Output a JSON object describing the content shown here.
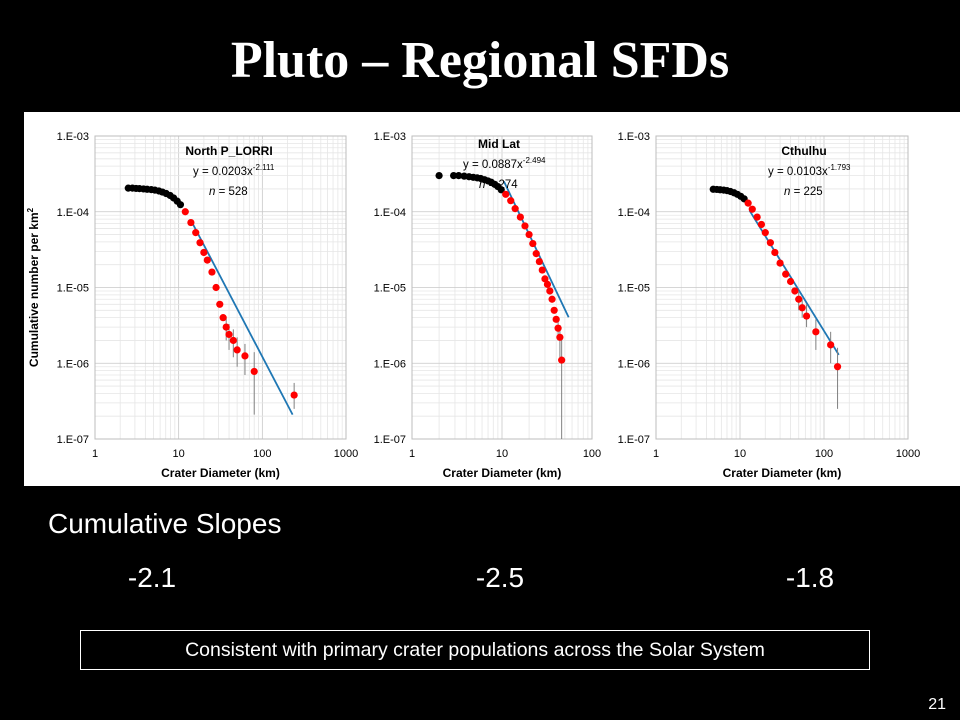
{
  "slide": {
    "title": "Pluto – Regional SFDs",
    "slopes_heading": "Cumulative Slopes",
    "slopes": [
      "-2.1",
      "-2.5",
      "-1.8"
    ],
    "conclusion": "Consistent with primary crater populations across the Solar System",
    "slide_number": "21"
  },
  "colors": {
    "background": "#000000",
    "data_point": "#ff0000",
    "small_crater_point": "#000000",
    "fit_line": "#1f77b4",
    "error_bar": "#808080"
  },
  "chart_data": [
    {
      "type": "scatter",
      "title": "North P_LORRI",
      "equation": "y = 0.0203x",
      "exponent": "-2.111",
      "n_label": "n",
      "n_value": "= 528",
      "xlabel": "Crater Diameter (km)",
      "ylabel": "Cumulative number per km",
      "ylabel_superscript": "2",
      "xscale": "log",
      "yscale": "log",
      "xlim": [
        1,
        1000
      ],
      "ylim": [
        1e-07,
        0.001
      ],
      "xticks": [
        "1",
        "10",
        "100",
        "1000"
      ],
      "yticks": [
        "1.E-07",
        "1.E-06",
        "1.E-05",
        "1.E-04",
        "1.E-03"
      ],
      "grid": true,
      "fit": {
        "coefficient": 0.0203,
        "exponent": -2.111,
        "x_range": [
          14,
          230
        ]
      },
      "points_small": {
        "x": [
          2.5,
          2.8,
          3.1,
          3.4,
          3.8,
          4.2,
          4.7,
          5.2,
          5.8,
          6.4,
          7.1,
          7.9,
          8.7,
          9.6,
          10.5
        ],
        "y": [
          0.000205,
          0.000205,
          0.000203,
          0.000202,
          0.0002,
          0.000198,
          0.000196,
          0.000193,
          0.000188,
          0.000182,
          0.000174,
          0.000164,
          0.000152,
          0.000138,
          0.000124
        ]
      },
      "points": {
        "x": [
          12,
          14,
          16,
          18,
          20,
          22,
          25,
          28,
          31,
          34,
          37,
          40,
          45,
          50,
          62,
          80,
          240
        ],
        "y": [
          0.0001,
          7.2e-05,
          5.3e-05,
          3.9e-05,
          2.9e-05,
          2.3e-05,
          1.6e-05,
          1e-05,
          6e-06,
          4e-06,
          3e-06,
          2.4e-06,
          2e-06,
          1.5e-06,
          1.25e-06,
          7.8e-07,
          3.8e-07
        ],
        "err_low": [
          null,
          null,
          null,
          null,
          null,
          null,
          null,
          null,
          null,
          null,
          2e-06,
          1.5e-06,
          1.2e-06,
          9e-07,
          7e-07,
          2.1e-07,
          2.5e-07
        ],
        "err_high": [
          null,
          null,
          null,
          null,
          null,
          null,
          null,
          null,
          null,
          null,
          4e-06,
          3.3e-06,
          2.8e-06,
          2.2e-06,
          1.8e-06,
          1.4e-06,
          5.5e-07
        ]
      }
    },
    {
      "type": "scatter",
      "title": "Mid Lat",
      "equation": "y = 0.0887x",
      "exponent": "-2.494",
      "n_label": "n",
      "n_value": "= 274",
      "xlabel": "Crater Diameter (km)",
      "ylabel": "",
      "xscale": "log",
      "yscale": "log",
      "xlim": [
        1,
        100
      ],
      "ylim": [
        1e-07,
        0.001
      ],
      "xticks": [
        "1",
        "10",
        "100"
      ],
      "yticks": [
        "1.E-07",
        "1.E-06",
        "1.E-05",
        "1.E-04",
        "1.E-03"
      ],
      "grid": true,
      "fit": {
        "coefficient": 0.0887,
        "exponent": -2.494,
        "x_range": [
          10.5,
          55
        ]
      },
      "points_small": {
        "x": [
          2.0,
          2.9,
          3.3,
          3.8,
          4.3,
          4.8,
          5.3,
          5.8,
          6.4,
          7.0,
          7.6,
          8.3,
          9.0,
          9.8
        ],
        "y": [
          0.0003,
          0.0003,
          0.0003,
          0.000295,
          0.00029,
          0.000285,
          0.00028,
          0.000275,
          0.000265,
          0.000255,
          0.000245,
          0.00023,
          0.000215,
          0.000195
        ]
      },
      "points": {
        "x": [
          11,
          12.5,
          14,
          16,
          18,
          20,
          22,
          24,
          26,
          28,
          30,
          32,
          34,
          36,
          38,
          40,
          42,
          44,
          46
        ],
        "y": [
          0.00017,
          0.00014,
          0.00011,
          8.5e-05,
          6.5e-05,
          5e-05,
          3.8e-05,
          2.8e-05,
          2.2e-05,
          1.7e-05,
          1.3e-05,
          1.1e-05,
          9e-06,
          7e-06,
          5e-06,
          3.8e-06,
          2.9e-06,
          2.2e-06,
          1.1e-06
        ],
        "err_low": [
          null,
          null,
          null,
          null,
          null,
          null,
          null,
          null,
          null,
          null,
          null,
          null,
          null,
          null,
          null,
          null,
          2e-06,
          1.2e-06,
          1e-07
        ],
        "err_high": [
          null,
          null,
          null,
          null,
          null,
          null,
          null,
          null,
          null,
          null,
          null,
          null,
          null,
          null,
          null,
          null,
          4e-06,
          3.2e-06,
          2.4e-06
        ]
      }
    },
    {
      "type": "scatter",
      "title": "Cthulhu",
      "equation": "y = 0.0103x",
      "exponent": "-1.793",
      "n_label": "n",
      "n_value": "= 225",
      "xlabel": "Crater Diameter (km)",
      "ylabel": "",
      "xscale": "log",
      "yscale": "log",
      "xlim": [
        1,
        1000
      ],
      "ylim": [
        1e-07,
        0.001
      ],
      "xticks": [
        "1",
        "10",
        "100",
        "1000"
      ],
      "yticks": [
        "1.E-07",
        "1.E-06",
        "1.E-05",
        "1.E-04",
        "1.E-03"
      ],
      "grid": true,
      "fit": {
        "coefficient": 0.0103,
        "exponent": -1.793,
        "x_range": [
          13,
          150
        ]
      },
      "points_small": {
        "x": [
          4.8,
          5.3,
          5.8,
          6.4,
          7.0,
          7.7,
          8.5,
          9.3,
          10.2,
          11.2
        ],
        "y": [
          0.000198,
          0.000197,
          0.000195,
          0.000193,
          0.00019,
          0.000185,
          0.000178,
          0.00017,
          0.00016,
          0.000148
        ]
      },
      "points": {
        "x": [
          12.5,
          14,
          16,
          18,
          20,
          23,
          26,
          30,
          35,
          40,
          45,
          50,
          55,
          62,
          80,
          120,
          145
        ],
        "y": [
          0.00013,
          0.000108,
          8.5e-05,
          6.8e-05,
          5.3e-05,
          3.9e-05,
          2.9e-05,
          2.1e-05,
          1.5e-05,
          1.2e-05,
          9e-06,
          7e-06,
          5.4e-06,
          4.2e-06,
          2.6e-06,
          1.75e-06,
          9e-07
        ],
        "err_low": [
          null,
          null,
          null,
          null,
          null,
          null,
          null,
          null,
          null,
          null,
          null,
          5e-06,
          4e-06,
          3e-06,
          1.5e-06,
          1e-06,
          2.5e-07
        ],
        "err_high": [
          null,
          null,
          null,
          null,
          null,
          null,
          null,
          null,
          null,
          null,
          null,
          9e-06,
          7.2e-06,
          6e-06,
          3.8e-06,
          2.6e-06,
          1.6e-06
        ]
      }
    }
  ]
}
